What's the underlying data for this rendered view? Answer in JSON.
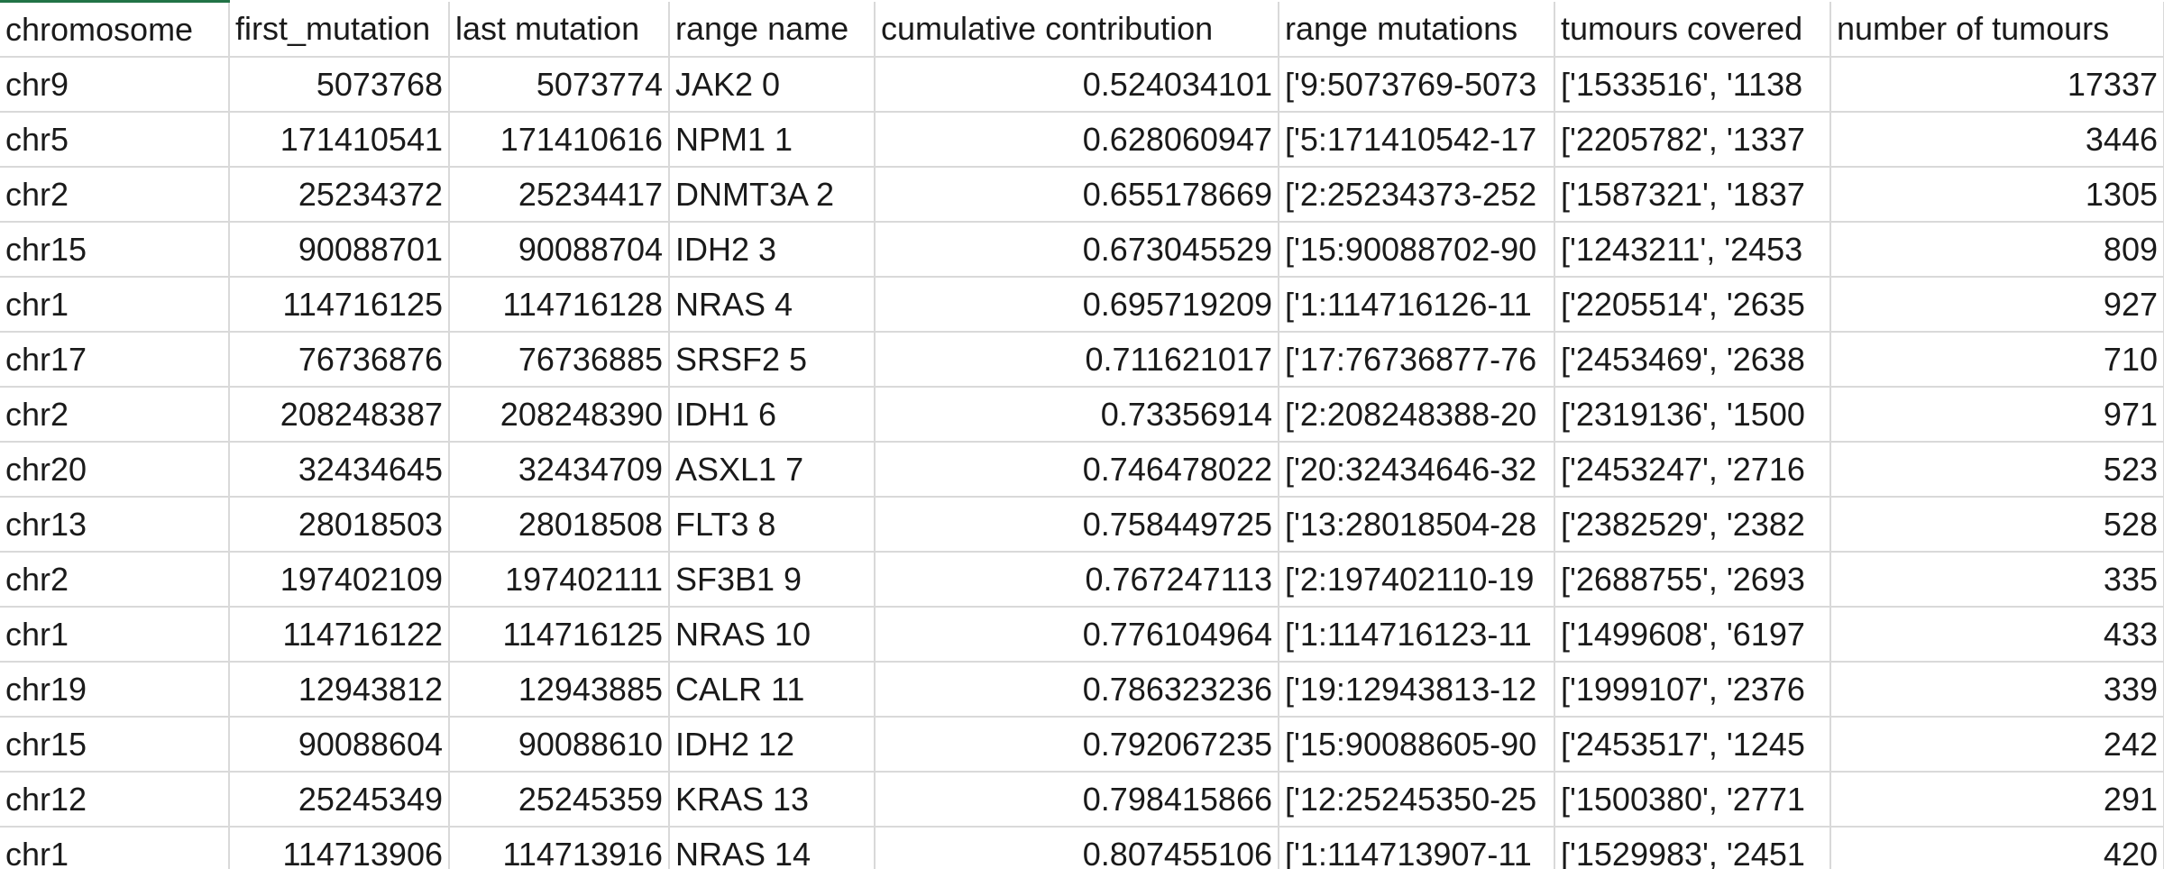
{
  "headers": [
    "chromosome",
    "first_mutation",
    "last mutation",
    "range name",
    "cumulative contribution",
    "range mutations",
    "tumours covered",
    "number of tumours"
  ],
  "rows": [
    [
      "chr9",
      "5073768",
      "5073774",
      "JAK2 0",
      "0.524034101",
      "['9:5073769-5073",
      "['1533516', '1138",
      "17337"
    ],
    [
      "chr5",
      "171410541",
      "171410616",
      "NPM1 1",
      "0.628060947",
      "['5:171410542-17",
      "['2205782', '1337",
      "3446"
    ],
    [
      "chr2",
      "25234372",
      "25234417",
      "DNMT3A 2",
      "0.655178669",
      "['2:25234373-252",
      "['1587321', '1837",
      "1305"
    ],
    [
      "chr15",
      "90088701",
      "90088704",
      "IDH2 3",
      "0.673045529",
      "['15:90088702-90",
      "['1243211', '2453",
      "809"
    ],
    [
      "chr1",
      "114716125",
      "114716128",
      "NRAS 4",
      "0.695719209",
      "['1:114716126-11",
      "['2205514', '2635",
      "927"
    ],
    [
      "chr17",
      "76736876",
      "76736885",
      "SRSF2 5",
      "0.711621017",
      "['17:76736877-76",
      "['2453469', '2638",
      "710"
    ],
    [
      "chr2",
      "208248387",
      "208248390",
      "IDH1 6",
      "0.73356914",
      "['2:208248388-20",
      "['2319136', '1500",
      "971"
    ],
    [
      "chr20",
      "32434645",
      "32434709",
      "ASXL1 7",
      "0.746478022",
      "['20:32434646-32",
      "['2453247', '2716",
      "523"
    ],
    [
      "chr13",
      "28018503",
      "28018508",
      "FLT3 8",
      "0.758449725",
      "['13:28018504-28",
      "['2382529', '2382",
      "528"
    ],
    [
      "chr2",
      "197402109",
      "197402111",
      "SF3B1 9",
      "0.767247113",
      "['2:197402110-19",
      "['2688755', '2693",
      "335"
    ],
    [
      "chr1",
      "114716122",
      "114716125",
      "NRAS 10",
      "0.776104964",
      "['1:114716123-11",
      "['1499608', '6197",
      "433"
    ],
    [
      "chr19",
      "12943812",
      "12943885",
      "CALR 11",
      "0.786323236",
      "['19:12943813-12",
      "['1999107', '2376",
      "339"
    ],
    [
      "chr15",
      "90088604",
      "90088610",
      "IDH2 12",
      "0.792067235",
      "['15:90088605-90",
      "['2453517', '1245",
      "242"
    ],
    [
      "chr12",
      "25245349",
      "25245359",
      "KRAS 13",
      "0.798415866",
      "['12:25245350-25",
      "['1500380', '2771",
      "291"
    ],
    [
      "chr1",
      "114713906",
      "114713916",
      "NRAS 14",
      "0.807455106",
      "['1:114713907-11",
      "['1529983', '2451",
      "420"
    ]
  ]
}
